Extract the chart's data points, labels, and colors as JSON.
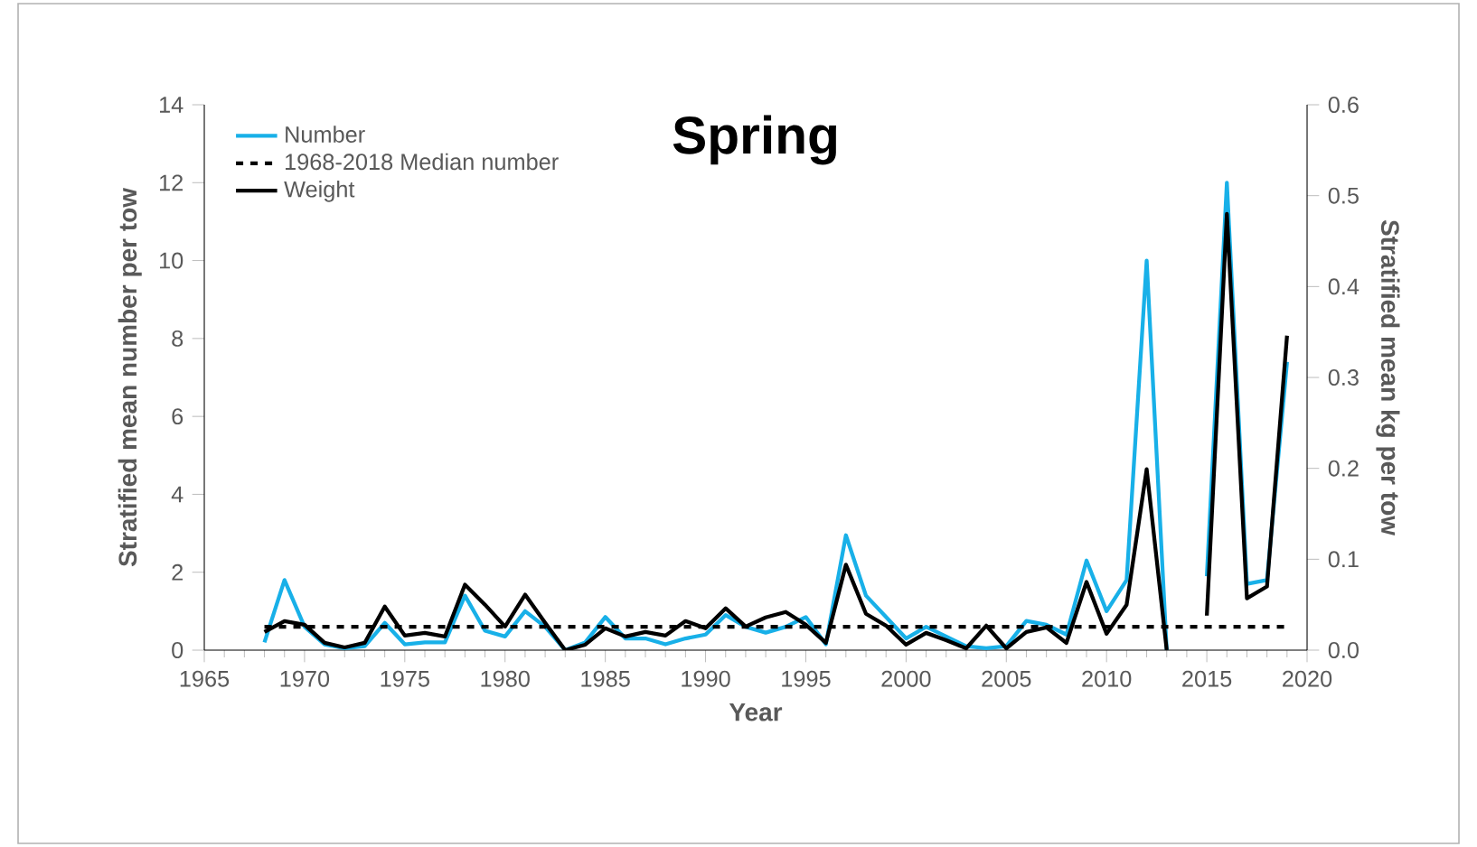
{
  "chart_data": {
    "type": "line",
    "title": "Spring",
    "xlabel": "Year",
    "ylabel": "Stratified mean number per tow",
    "y2label": "Stratified mean kg per tow",
    "x": [
      1968,
      1969,
      1970,
      1971,
      1972,
      1973,
      1974,
      1975,
      1976,
      1977,
      1978,
      1979,
      1980,
      1981,
      1982,
      1983,
      1984,
      1985,
      1986,
      1987,
      1988,
      1989,
      1990,
      1991,
      1992,
      1993,
      1994,
      1995,
      1996,
      1997,
      1998,
      1999,
      2000,
      2001,
      2002,
      2003,
      2004,
      2005,
      2006,
      2007,
      2008,
      2009,
      2010,
      2011,
      2012,
      2013,
      2014,
      2015,
      2016,
      2017,
      2018,
      2019
    ],
    "series": [
      {
        "name": "Number",
        "color": "#18b0e8",
        "values": [
          0.2,
          1.8,
          0.6,
          0.15,
          0.05,
          0.1,
          0.7,
          0.15,
          0.2,
          0.2,
          1.4,
          0.5,
          0.35,
          1.0,
          0.6,
          0.0,
          0.2,
          0.85,
          0.3,
          0.3,
          0.15,
          0.3,
          0.4,
          0.9,
          0.6,
          0.45,
          0.6,
          0.85,
          0.15,
          2.95,
          1.4,
          0.85,
          0.3,
          0.6,
          0.35,
          0.1,
          0.05,
          0.1,
          0.75,
          0.65,
          0.4,
          2.3,
          1.0,
          1.8,
          10.0,
          0.0,
          null,
          1.9,
          12.0,
          1.7,
          1.8,
          7.4
        ]
      },
      {
        "name": "1968-2018 Median number",
        "color": "#000000",
        "line_style": "dashed",
        "x": [
          1968,
          2019
        ],
        "values": [
          0.6,
          0.6
        ]
      },
      {
        "name": "Weight",
        "color": "#000000",
        "axis": "y2",
        "values": [
          0.02,
          0.032,
          0.028,
          0.008,
          0.003,
          0.008,
          0.048,
          0.016,
          0.019,
          0.015,
          0.072,
          0.05,
          0.026,
          0.061,
          0.03,
          0.0,
          0.006,
          0.024,
          0.015,
          0.02,
          0.016,
          0.032,
          0.024,
          0.046,
          0.026,
          0.036,
          0.042,
          0.028,
          0.008,
          0.094,
          0.04,
          0.027,
          0.006,
          0.019,
          0.011,
          0.002,
          0.027,
          0.002,
          0.02,
          0.025,
          0.008,
          0.075,
          0.018,
          0.05,
          0.199,
          0.0,
          null,
          0.038,
          0.48,
          0.057,
          0.07,
          0.346
        ]
      }
    ],
    "xlim": [
      1965,
      2020
    ],
    "xticks": [
      1965,
      1970,
      1975,
      1980,
      1985,
      1990,
      1995,
      2000,
      2005,
      2010,
      2015,
      2020
    ],
    "ylim": [
      0,
      14
    ],
    "yticks": [
      0,
      2,
      4,
      6,
      8,
      10,
      12,
      14
    ],
    "y2lim": [
      0,
      0.6
    ],
    "y2ticks": [
      {
        "value": 0,
        "label": "0.0"
      },
      0.1,
      0.2,
      0.3,
      0.4,
      0.5,
      0.6
    ],
    "grid": false,
    "legend": "top left",
    "marker": "none"
  }
}
